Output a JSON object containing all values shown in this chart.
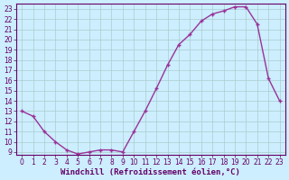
{
  "x": [
    0,
    1,
    2,
    3,
    4,
    5,
    6,
    7,
    8,
    9,
    10,
    11,
    12,
    13,
    14,
    15,
    16,
    17,
    18,
    19,
    20,
    21,
    22,
    23
  ],
  "y": [
    13.0,
    12.5,
    11.0,
    10.0,
    9.2,
    8.8,
    9.0,
    9.2,
    9.2,
    9.0,
    11.0,
    13.0,
    15.2,
    17.5,
    19.5,
    20.5,
    21.8,
    22.5,
    22.8,
    23.2,
    23.2,
    21.5,
    16.2,
    14.0
  ],
  "line_color": "#993399",
  "marker": "+",
  "marker_size": 3,
  "marker_lw": 1.0,
  "background_color": "#cceeff",
  "grid_color": "#aacccc",
  "xlabel": "Windchill (Refroidissement éolien,°C)",
  "ylim_min": 8.7,
  "ylim_max": 23.5,
  "xlim_min": -0.5,
  "xlim_max": 23.5,
  "yticks": [
    9,
    10,
    11,
    12,
    13,
    14,
    15,
    16,
    17,
    18,
    19,
    20,
    21,
    22,
    23
  ],
  "xticks": [
    0,
    1,
    2,
    3,
    4,
    5,
    6,
    7,
    8,
    9,
    10,
    11,
    12,
    13,
    14,
    15,
    16,
    17,
    18,
    19,
    20,
    21,
    22,
    23
  ],
  "tick_label_size": 5.5,
  "xlabel_size": 6.5,
  "label_color": "#660066",
  "tick_color": "#660066",
  "spine_color": "#660066",
  "linewidth": 1.0
}
